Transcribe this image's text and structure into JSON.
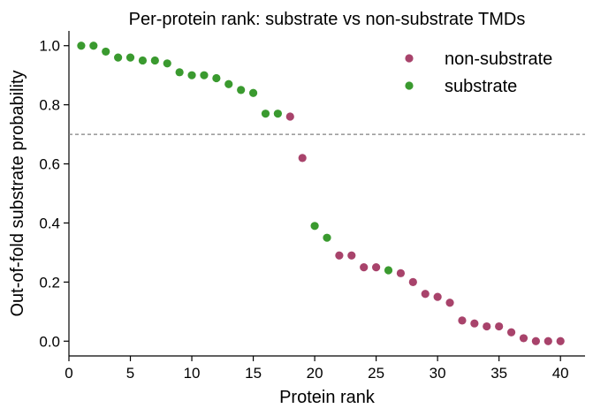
{
  "chart_data": {
    "type": "scatter",
    "title": "Per-protein rank: substrate vs non-substrate TMDs",
    "xlabel": "Protein rank",
    "ylabel": "Out-of-fold substrate probability",
    "xlim": [
      0.0,
      42.0
    ],
    "ylim": [
      -0.05,
      1.05
    ],
    "xticks": [
      0,
      5,
      10,
      15,
      20,
      25,
      30,
      35,
      40
    ],
    "yticks": [
      0.0,
      0.2,
      0.4,
      0.6,
      0.8,
      1.0
    ],
    "xtick_labels": [
      "0",
      "5",
      "10",
      "15",
      "20",
      "25",
      "30",
      "35",
      "40"
    ],
    "ytick_labels": [
      "0.0",
      "0.2",
      "0.4",
      "0.6",
      "0.8",
      "1.0"
    ],
    "threshold": {
      "y": 0.7,
      "color": "#808080",
      "style": "dashed"
    },
    "grid": false,
    "legend_position": "top-right",
    "series": [
      {
        "name": "non-substrate",
        "color": "#A8436B",
        "x": [
          18,
          19,
          22,
          23,
          24,
          25,
          27,
          28,
          29,
          30,
          31,
          32,
          33,
          34,
          35,
          36,
          37,
          38,
          39,
          40
        ],
        "y": [
          0.76,
          0.62,
          0.29,
          0.29,
          0.25,
          0.25,
          0.23,
          0.2,
          0.16,
          0.15,
          0.13,
          0.07,
          0.06,
          0.05,
          0.05,
          0.03,
          0.01,
          0.0,
          0.0,
          0.0
        ]
      },
      {
        "name": "substrate",
        "color": "#3A9A2F",
        "x": [
          1,
          2,
          3,
          4,
          5,
          6,
          7,
          8,
          9,
          10,
          11,
          12,
          13,
          14,
          15,
          16,
          17,
          20,
          21,
          26
        ],
        "y": [
          1.0,
          1.0,
          0.98,
          0.96,
          0.96,
          0.95,
          0.95,
          0.94,
          0.91,
          0.9,
          0.9,
          0.89,
          0.87,
          0.85,
          0.84,
          0.77,
          0.77,
          0.39,
          0.35,
          0.24
        ]
      }
    ]
  }
}
